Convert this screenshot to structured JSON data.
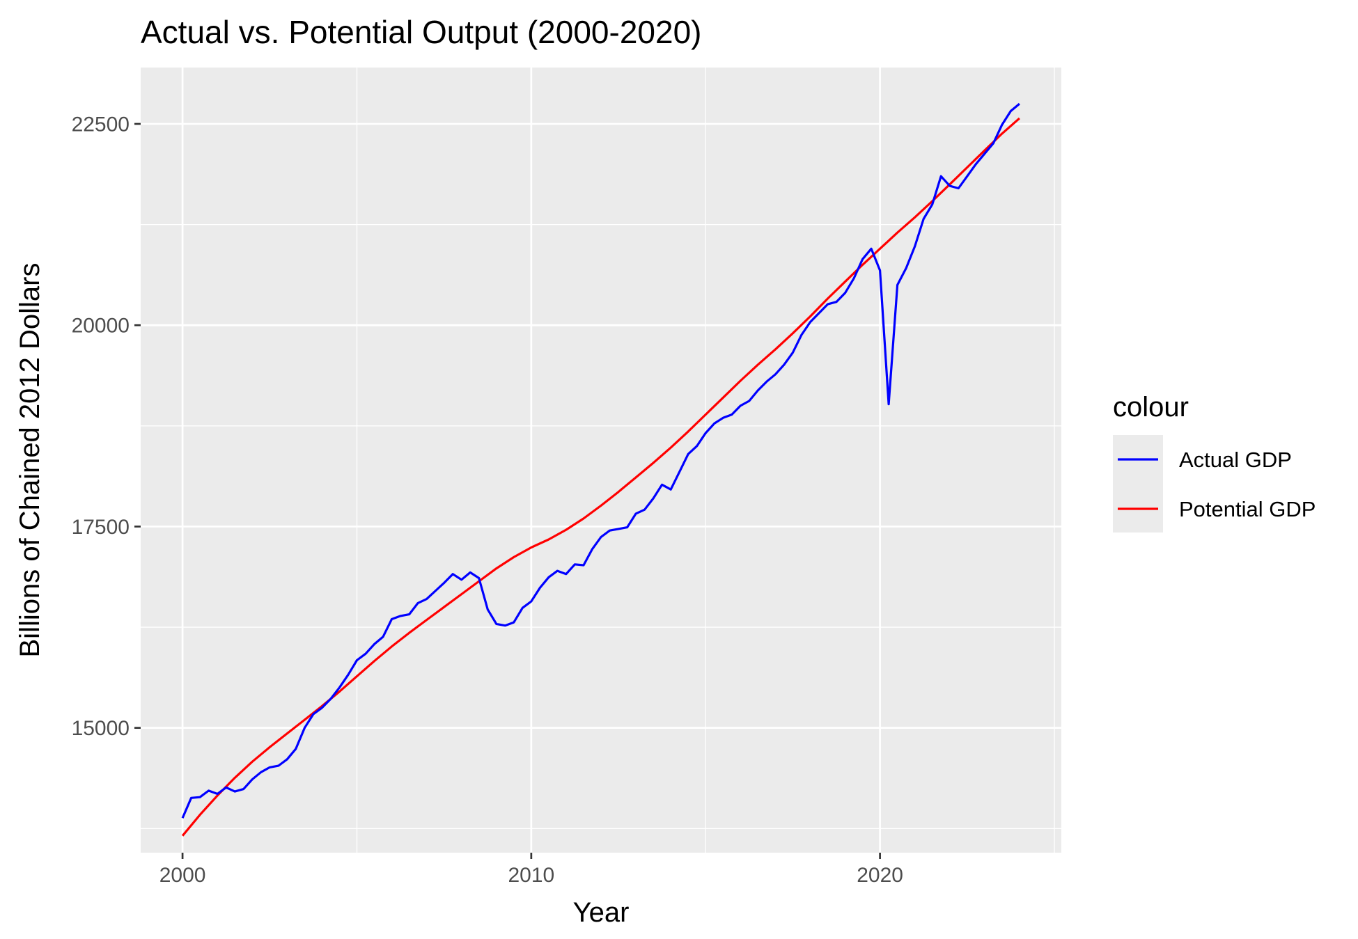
{
  "chart_data": {
    "type": "line",
    "title": "Actual vs. Potential Output (2000-2020)",
    "xlabel": "Year",
    "ylabel": "Billions of Chained 2012 Dollars",
    "xlim": [
      1998.8,
      2025.2
    ],
    "ylim": [
      13450,
      23200
    ],
    "x_ticks": [
      2000,
      2010,
      2020
    ],
    "x_minor_ticks": [
      2005,
      2015,
      2025
    ],
    "y_ticks": [
      15000,
      17500,
      20000,
      22500
    ],
    "y_minor_ticks": [
      13750,
      16250,
      18750,
      21250
    ],
    "x_tick_labels": [
      "2000",
      "2010",
      "2020"
    ],
    "y_tick_labels": [
      "15000",
      "17500",
      "20000",
      "22500"
    ],
    "grid": true,
    "legend": {
      "title": "colour",
      "position": "right"
    },
    "series": [
      {
        "name": "Actual GDP",
        "color": "#0000ff",
        "x": [
          2000.0,
          2000.25,
          2000.5,
          2000.75,
          2001.0,
          2001.25,
          2001.5,
          2001.75,
          2002.0,
          2002.25,
          2002.5,
          2002.75,
          2003.0,
          2003.25,
          2003.5,
          2003.75,
          2004.0,
          2004.25,
          2004.5,
          2004.75,
          2005.0,
          2005.25,
          2005.5,
          2005.75,
          2006.0,
          2006.25,
          2006.5,
          2006.75,
          2007.0,
          2007.25,
          2007.5,
          2007.75,
          2008.0,
          2008.25,
          2008.5,
          2008.75,
          2009.0,
          2009.25,
          2009.5,
          2009.75,
          2010.0,
          2010.25,
          2010.5,
          2010.75,
          2011.0,
          2011.25,
          2011.5,
          2011.75,
          2012.0,
          2012.25,
          2012.5,
          2012.75,
          2013.0,
          2013.25,
          2013.5,
          2013.75,
          2014.0,
          2014.25,
          2014.5,
          2014.75,
          2015.0,
          2015.25,
          2015.5,
          2015.75,
          2016.0,
          2016.25,
          2016.5,
          2016.75,
          2017.0,
          2017.25,
          2017.5,
          2017.75,
          2018.0,
          2018.25,
          2018.5,
          2018.75,
          2019.0,
          2019.25,
          2019.5,
          2019.75,
          2020.0,
          2020.25,
          2020.5,
          2020.75,
          2021.0,
          2021.25,
          2021.5,
          2021.75,
          2022.0,
          2022.25,
          2022.5,
          2022.75,
          2023.0,
          2023.25,
          2023.5,
          2023.75,
          2024.0
        ],
        "y": [
          13880,
          14130,
          14140,
          14220,
          14180,
          14260,
          14210,
          14240,
          14360,
          14450,
          14510,
          14530,
          14610,
          14740,
          15000,
          15170,
          15250,
          15360,
          15500,
          15660,
          15840,
          15920,
          16040,
          16130,
          16350,
          16390,
          16410,
          16550,
          16600,
          16700,
          16800,
          16910,
          16840,
          16930,
          16860,
          16470,
          16290,
          16270,
          16310,
          16490,
          16570,
          16740,
          16870,
          16950,
          16910,
          17030,
          17020,
          17220,
          17370,
          17450,
          17470,
          17490,
          17660,
          17710,
          17850,
          18020,
          17960,
          18180,
          18400,
          18500,
          18660,
          18780,
          18850,
          18890,
          19000,
          19060,
          19190,
          19300,
          19390,
          19510,
          19660,
          19880,
          20040,
          20150,
          20260,
          20290,
          20400,
          20580,
          20820,
          20950,
          20680,
          19020,
          20500,
          20710,
          20980,
          21320,
          21500,
          21850,
          21730,
          21700,
          21850,
          22000,
          22130,
          22260,
          22490,
          22660,
          22750
        ]
      },
      {
        "name": "Potential GDP",
        "color": "#ff0000",
        "x": [
          2000.0,
          2000.5,
          2001.0,
          2001.5,
          2002.0,
          2002.5,
          2003.0,
          2003.5,
          2004.0,
          2004.5,
          2005.0,
          2005.5,
          2006.0,
          2006.5,
          2007.0,
          2007.5,
          2008.0,
          2008.5,
          2009.0,
          2009.5,
          2010.0,
          2010.5,
          2011.0,
          2011.5,
          2012.0,
          2012.5,
          2013.0,
          2013.5,
          2014.0,
          2014.5,
          2015.0,
          2015.5,
          2016.0,
          2016.5,
          2017.0,
          2017.5,
          2018.0,
          2018.5,
          2019.0,
          2019.5,
          2020.0,
          2020.5,
          2021.0,
          2021.5,
          2022.0,
          2022.5,
          2023.0,
          2023.5,
          2024.0
        ],
        "y": [
          13660,
          13920,
          14160,
          14380,
          14580,
          14760,
          14930,
          15100,
          15270,
          15450,
          15640,
          15830,
          16010,
          16180,
          16340,
          16500,
          16660,
          16820,
          16980,
          17120,
          17240,
          17340,
          17460,
          17600,
          17760,
          17930,
          18110,
          18290,
          18480,
          18680,
          18890,
          19100,
          19310,
          19510,
          19700,
          19900,
          20110,
          20330,
          20540,
          20750,
          20950,
          21150,
          21340,
          21540,
          21750,
          21960,
          22170,
          22380,
          22570
        ]
      }
    ]
  }
}
